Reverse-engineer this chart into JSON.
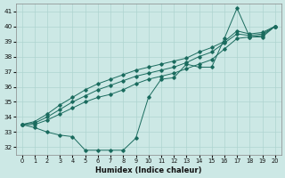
{
  "xlabel": "Humidex (Indice chaleur)",
  "ylabel": "",
  "background_color": "#cce8e5",
  "grid_color": "#aed4d0",
  "line_color": "#1a6b5e",
  "xlim": [
    -0.5,
    20.5
  ],
  "ylim": [
    31.5,
    41.5
  ],
  "xticks": [
    0,
    1,
    2,
    3,
    4,
    5,
    6,
    7,
    8,
    9,
    10,
    11,
    12,
    13,
    14,
    15,
    16,
    17,
    18,
    19,
    20
  ],
  "yticks": [
    32,
    33,
    34,
    35,
    36,
    37,
    38,
    39,
    40,
    41
  ],
  "series": [
    [
      33.5,
      33.3,
      33.0,
      32.8,
      32.7,
      31.8,
      31.8,
      31.8,
      31.8,
      32.6,
      35.3,
      36.5,
      36.6,
      37.5,
      37.3,
      37.3,
      39.2,
      41.2,
      39.3,
      39.3,
      40.0
    ],
    [
      33.5,
      33.5,
      33.8,
      34.2,
      34.6,
      35.0,
      35.3,
      35.5,
      35.8,
      36.2,
      36.5,
      36.7,
      36.9,
      37.2,
      37.5,
      37.8,
      38.5,
      39.2,
      39.3,
      39.4,
      40.0
    ],
    [
      33.5,
      33.6,
      34.0,
      34.5,
      35.0,
      35.4,
      35.8,
      36.1,
      36.4,
      36.7,
      36.9,
      37.1,
      37.3,
      37.6,
      38.0,
      38.3,
      38.9,
      39.5,
      39.4,
      39.5,
      40.0
    ],
    [
      33.5,
      33.7,
      34.2,
      34.8,
      35.3,
      35.8,
      36.2,
      36.5,
      36.8,
      37.1,
      37.3,
      37.5,
      37.7,
      37.9,
      38.3,
      38.6,
      39.0,
      39.7,
      39.5,
      39.6,
      40.0
    ]
  ]
}
